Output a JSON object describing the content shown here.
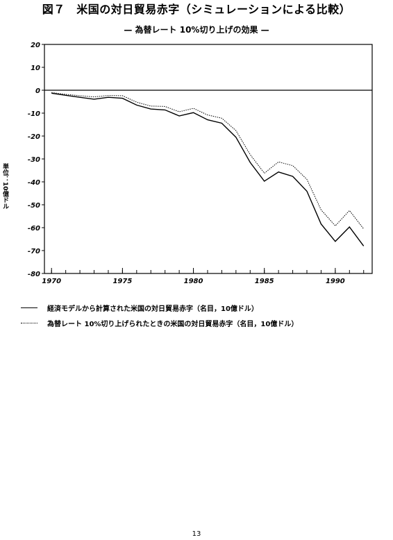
{
  "figure": {
    "title": "図７　米国の対日貿易赤字（シミュレーションによる比較）",
    "subtitle": "— 為替レート 10%切り上げの効果 —",
    "page_number": "13"
  },
  "chart_data": {
    "type": "line",
    "ylabel": "単位：10億ドル",
    "ylim": [
      -80,
      20
    ],
    "xlim": [
      1969.5,
      1992.6
    ],
    "yticks": [
      20,
      10,
      0,
      -10,
      -20,
      -30,
      -40,
      -50,
      -60,
      -70,
      -80
    ],
    "xticks": [
      1970,
      1975,
      1980,
      1985,
      1990
    ],
    "x": [
      1970,
      1971,
      1972,
      1973,
      1974,
      1975,
      1976,
      1977,
      1978,
      1979,
      1980,
      1981,
      1982,
      1983,
      1984,
      1985,
      1986,
      1987,
      1988,
      1989,
      1990,
      1991,
      1992
    ],
    "series": [
      {
        "name": "経済モデルから計算された米国の対日貿易赤字（名目，10億ドル）",
        "style": "solid",
        "values": [
          -1.3,
          -2.2,
          -3.1,
          -3.9,
          -3.1,
          -3.5,
          -6.5,
          -8.2,
          -8.6,
          -11.2,
          -9.8,
          -12.9,
          -14.4,
          -20.5,
          -31.5,
          -39.7,
          -35.7,
          -37.6,
          -44.1,
          -58.4,
          -66.0,
          -59.7,
          -68.0
        ]
      },
      {
        "name": "為替レート 10%切り上げられたときの米国の対日貿易赤字（名目，10億ドル）",
        "style": "dotted",
        "values": [
          -1.0,
          -1.8,
          -2.4,
          -2.9,
          -2.3,
          -2.4,
          -5.2,
          -6.9,
          -7.1,
          -9.4,
          -7.9,
          -10.8,
          -12.2,
          -17.6,
          -28.1,
          -36.2,
          -31.3,
          -32.9,
          -38.9,
          -52.2,
          -59.2,
          -52.5,
          -60.5
        ]
      }
    ],
    "colors": {
      "line": "#000000",
      "axis": "#000000"
    },
    "grid": false,
    "zero_line": true,
    "legend_position": "bottom-left"
  }
}
